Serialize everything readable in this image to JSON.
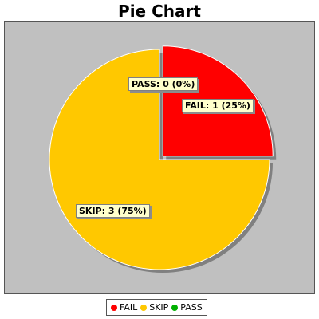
{
  "chart_data": {
    "type": "pie",
    "title": "Pie Chart",
    "slices": [
      {
        "name": "FAIL",
        "value": 1,
        "label": "FAIL: 1 (25%)",
        "color": "#ff0000"
      },
      {
        "name": "SKIP",
        "value": 3,
        "label": "SKIP: 3 (75%)",
        "color": "#ffc800"
      },
      {
        "name": "PASS",
        "value": 0,
        "label": "PASS: 0 (0%)",
        "color": "#00b000"
      }
    ],
    "legend_placement": "bottom",
    "background": "#c0c0c0"
  }
}
